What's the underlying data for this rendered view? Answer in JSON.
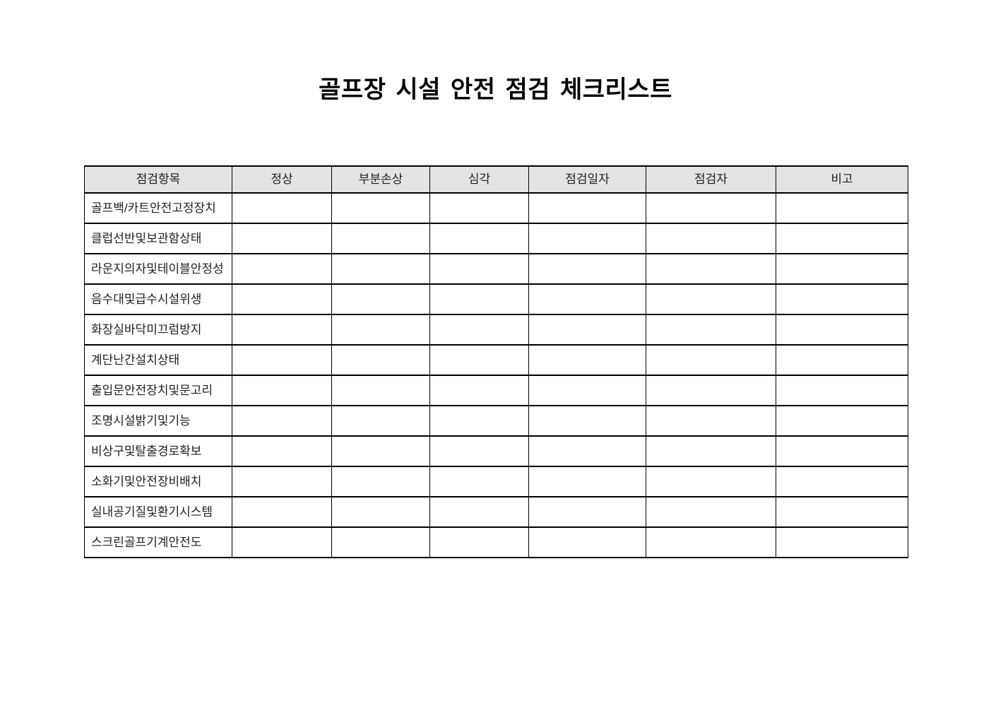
{
  "document": {
    "title": "골프장 시설 안전 점검 체크리스트"
  },
  "checklist_table": {
    "colors": {
      "header_bg": "#e4e4e4",
      "border": "#000000",
      "text": "#1f1f1f"
    },
    "columns": [
      {
        "key": "item",
        "label": "점검항목"
      },
      {
        "key": "normal",
        "label": "정상"
      },
      {
        "key": "partial_damage",
        "label": "부분손상"
      },
      {
        "key": "severe",
        "label": "심각"
      },
      {
        "key": "inspection_date",
        "label": "점검일자"
      },
      {
        "key": "inspector",
        "label": "점검자"
      },
      {
        "key": "remarks",
        "label": "비고"
      }
    ],
    "rows": [
      {
        "item": "골프백/카트안전고정장치",
        "normal": "",
        "partial_damage": "",
        "severe": "",
        "inspection_date": "",
        "inspector": "",
        "remarks": ""
      },
      {
        "item": "클럽선반및보관함상태",
        "normal": "",
        "partial_damage": "",
        "severe": "",
        "inspection_date": "",
        "inspector": "",
        "remarks": ""
      },
      {
        "item": "라운지의자및테이블안정성",
        "normal": "",
        "partial_damage": "",
        "severe": "",
        "inspection_date": "",
        "inspector": "",
        "remarks": ""
      },
      {
        "item": "음수대및급수시설위생",
        "normal": "",
        "partial_damage": "",
        "severe": "",
        "inspection_date": "",
        "inspector": "",
        "remarks": ""
      },
      {
        "item": "화장실바닥미끄럼방지",
        "normal": "",
        "partial_damage": "",
        "severe": "",
        "inspection_date": "",
        "inspector": "",
        "remarks": ""
      },
      {
        "item": "계단난간설치상태",
        "normal": "",
        "partial_damage": "",
        "severe": "",
        "inspection_date": "",
        "inspector": "",
        "remarks": ""
      },
      {
        "item": "출입문안전장치및문고리",
        "normal": "",
        "partial_damage": "",
        "severe": "",
        "inspection_date": "",
        "inspector": "",
        "remarks": ""
      },
      {
        "item": "조명시설밝기및기능",
        "normal": "",
        "partial_damage": "",
        "severe": "",
        "inspection_date": "",
        "inspector": "",
        "remarks": ""
      },
      {
        "item": "비상구및탈출경로확보",
        "normal": "",
        "partial_damage": "",
        "severe": "",
        "inspection_date": "",
        "inspector": "",
        "remarks": ""
      },
      {
        "item": "소화기및안전장비배치",
        "normal": "",
        "partial_damage": "",
        "severe": "",
        "inspection_date": "",
        "inspector": "",
        "remarks": ""
      },
      {
        "item": "실내공기질및환기시스템",
        "normal": "",
        "partial_damage": "",
        "severe": "",
        "inspection_date": "",
        "inspector": "",
        "remarks": ""
      },
      {
        "item": "스크린골프기계안전도",
        "normal": "",
        "partial_damage": "",
        "severe": "",
        "inspection_date": "",
        "inspector": "",
        "remarks": ""
      }
    ]
  }
}
